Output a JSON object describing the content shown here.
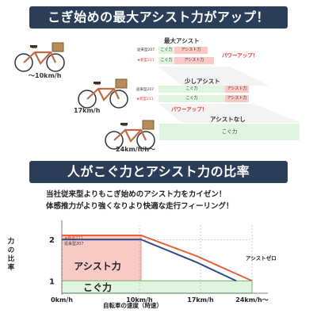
{
  "section1": {
    "banner": "こぎ始めの最大アシスト力がアップ！",
    "speeds": [
      "〜10km/h",
      "17km/h",
      "24km/h/h〜"
    ],
    "max_assist": {
      "title": "最大アシスト",
      "old_label": "従来型207",
      "new_label": "★新型211",
      "cell_kogi": "こぐ力",
      "cell_assist": "アシスト力",
      "power_up": "パワーアップ！"
    },
    "low_assist": {
      "title": "少しアシスト",
      "old_label": "従来型207",
      "new_label": "★新型211",
      "cell_kogi": "こぐ力",
      "cell_assist": "アシスト力",
      "power_up": "パワーアップ！"
    },
    "no_assist": {
      "title": "アシストなし",
      "cell_kogi": "こぐ力"
    }
  },
  "section2": {
    "banner": "人がこぐ力とアシスト力の比率",
    "text_line1": "当社従来型よりもこぎ始めのアシスト力をカイゼン！",
    "text_line2": "体感推力がより強くなりより快適な走行フィーリング！"
  },
  "chart_data": {
    "type": "line",
    "ylabel": "力の比率",
    "xlabel": "自転車の速度（時速）",
    "x_ticks": [
      "0km/h",
      "10km/h",
      "17km/h",
      "24km/h〜"
    ],
    "y_ticks": [
      "1",
      "2"
    ],
    "ylim": [
      0.7,
      2.35
    ],
    "series": [
      {
        "name": "★新型211",
        "color": "#e8603c",
        "x": [
          0,
          10,
          17,
          24
        ],
        "y": [
          2.1,
          2.1,
          1.6,
          1.0
        ]
      },
      {
        "name": "従来型207",
        "color": "#2e4a87",
        "x": [
          0,
          10,
          17,
          22
        ],
        "y": [
          2.0,
          2.0,
          1.45,
          1.0
        ]
      }
    ],
    "areas": {
      "assist_label": "アシスト力",
      "kogi_label": "こぐ力"
    },
    "annotation": "アシストゼロ"
  },
  "colors": {
    "banner_bg": "#2c3e57",
    "assist_pink": "#f9c9c5",
    "kogi_green": "#dff5df",
    "accent_red": "#e03a2a"
  },
  "icons": [
    "bicycle-icon"
  ]
}
